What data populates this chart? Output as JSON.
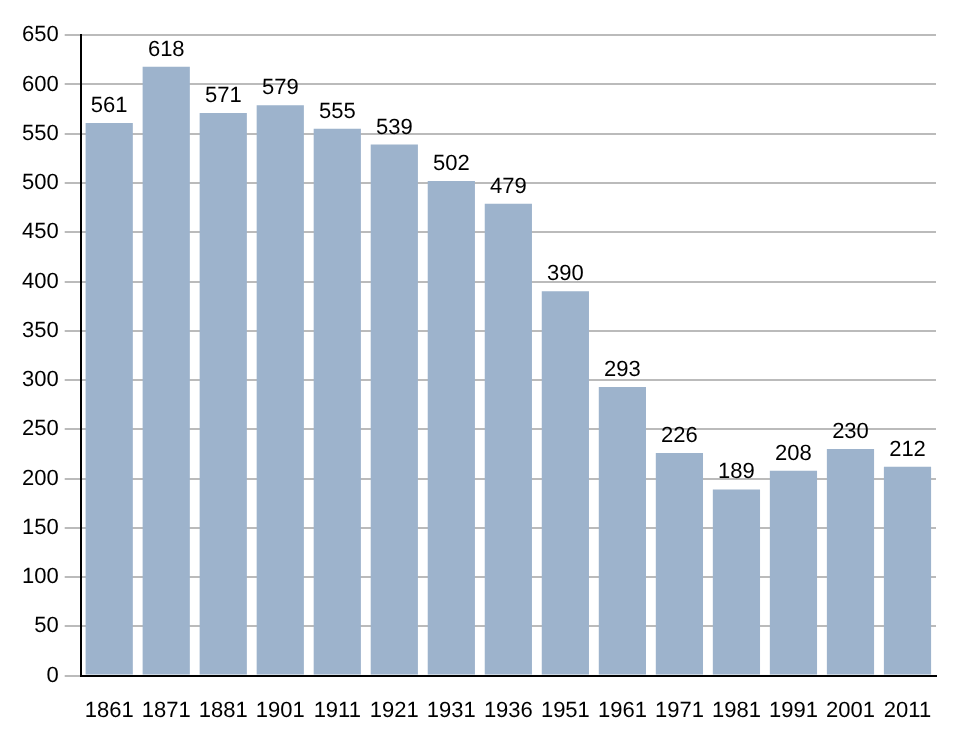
{
  "chart_data": {
    "type": "bar",
    "categories": [
      "1861",
      "1871",
      "1881",
      "1901",
      "1911",
      "1921",
      "1931",
      "1936",
      "1951",
      "1961",
      "1971",
      "1981",
      "1991",
      "2001",
      "2011"
    ],
    "values": [
      561,
      618,
      571,
      579,
      555,
      539,
      502,
      479,
      390,
      293,
      226,
      189,
      208,
      230,
      212
    ],
    "color": "#9db3cc",
    "ylim": [
      0,
      650
    ],
    "yticks": [
      0,
      50,
      100,
      150,
      200,
      250,
      300,
      350,
      400,
      450,
      500,
      550,
      600,
      650
    ],
    "grid": "y",
    "data_labels": true,
    "legend": false
  }
}
